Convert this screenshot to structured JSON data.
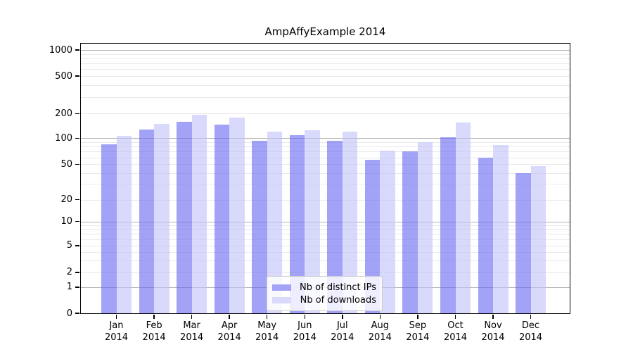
{
  "title": "AmpAffyExample 2014",
  "legend": {
    "items": [
      {
        "label": "Nb of distinct IPs",
        "swatch_color": "#a2a2f6"
      },
      {
        "label": "Nb of downloads",
        "swatch_color": "#d9d9fb"
      }
    ]
  },
  "chart_data": {
    "type": "bar",
    "title": "AmpAffyExample 2014",
    "scale_y": "logarithmic with 0 baseline",
    "months": [
      "Jan",
      "Feb",
      "Mar",
      "Apr",
      "May",
      "Jun",
      "Jul",
      "Aug",
      "Sep",
      "Oct",
      "Nov",
      "Dec"
    ],
    "year": "2014",
    "series": [
      {
        "name": "Nb of distinct IPs",
        "color": "rgba(105,105,240,0.62)",
        "values": [
          85,
          128,
          158,
          147,
          93,
          110,
          94,
          56,
          70,
          103,
          60,
          40
        ]
      },
      {
        "name": "Nb of downloads",
        "color": "rgba(193,193,248,0.62)",
        "values": [
          107,
          149,
          195,
          178,
          120,
          126,
          121,
          72,
          90,
          157,
          83,
          48
        ]
      }
    ],
    "y_ticks": [
      0,
      1,
      2,
      5,
      10,
      20,
      50,
      100,
      200,
      500,
      1000
    ],
    "ylim": [
      0,
      1300
    ],
    "grid": true,
    "legend_position": "inside axes, bottom center"
  },
  "colors": {
    "major_grid": "#b3b3b3",
    "minor_grid": "#e9e9e9",
    "frame": "#000000",
    "background": "#ffffff"
  }
}
